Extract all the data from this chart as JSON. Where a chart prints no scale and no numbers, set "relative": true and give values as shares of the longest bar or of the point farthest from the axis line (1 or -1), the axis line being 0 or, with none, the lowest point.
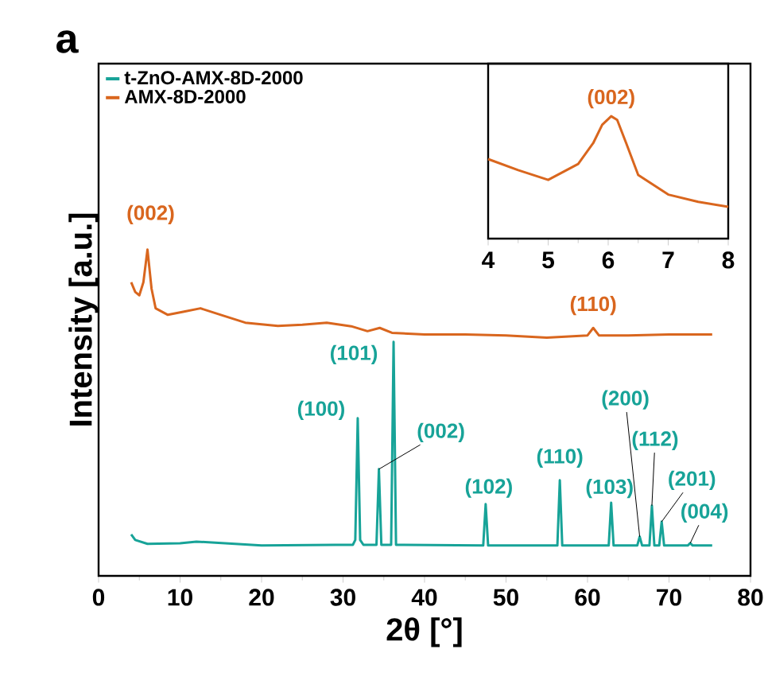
{
  "chart_data": [
    {
      "type": "line",
      "xlabel": "2θ [°]",
      "ylabel": "Intensity [a.u.]",
      "xlim": [
        0,
        80
      ],
      "xticks": [
        0,
        10,
        20,
        30,
        40,
        50,
        60,
        70,
        80
      ],
      "relative": true,
      "legend": "top left",
      "series": [
        {
          "name": "t-ZnO-AMX-8D-2000",
          "color": "#17a398",
          "x": [
            4,
            4.5,
            6,
            10,
            12,
            20,
            29,
            31.2,
            31.5,
            31.8,
            32.1,
            32.5,
            34.1,
            34.4,
            34.7,
            35.9,
            36.2,
            36.5,
            47.2,
            47.5,
            47.8,
            56.3,
            56.6,
            56.9,
            62.6,
            62.9,
            63.2,
            66.1,
            66.4,
            66.7,
            67.6,
            67.9,
            68.2,
            68.8,
            69.1,
            69.4,
            72.3,
            72.6,
            72.9,
            75.3
          ],
          "values": [
            0.127,
            0.11,
            0.098,
            0.1,
            0.105,
            0.093,
            0.095,
            0.095,
            0.11,
            0.483,
            0.11,
            0.095,
            0.095,
            0.327,
            0.095,
            0.095,
            0.717,
            0.095,
            0.093,
            0.22,
            0.093,
            0.093,
            0.293,
            0.093,
            0.093,
            0.224,
            0.093,
            0.093,
            0.12,
            0.093,
            0.093,
            0.215,
            0.093,
            0.093,
            0.166,
            0.093,
            0.093,
            0.1,
            0.093,
            0.093
          ]
        },
        {
          "name": "AMX-8D-2000",
          "color": "#d9661e",
          "x": [
            4,
            4.5,
            5,
            5.5,
            6,
            6.5,
            7,
            8.5,
            10.5,
            12.5,
            15,
            18,
            22,
            25,
            28,
            31,
            33,
            34.5,
            36,
            40,
            45,
            50,
            55,
            60,
            60.7,
            61.4,
            65,
            70,
            75.3
          ],
          "values": [
            0.9,
            0.87,
            0.86,
            0.9,
            1.0,
            0.88,
            0.82,
            0.8,
            0.81,
            0.82,
            0.8,
            0.776,
            0.766,
            0.77,
            0.776,
            0.765,
            0.75,
            0.76,
            0.745,
            0.74,
            0.74,
            0.737,
            0.73,
            0.737,
            0.76,
            0.737,
            0.737,
            0.74,
            0.74
          ]
        }
      ],
      "annotations": [
        "a",
        {
          "text": "(002)",
          "x": 6,
          "y": 1.0
        },
        {
          "text": "(110)",
          "x": 60.7,
          "y": 0.76
        },
        {
          "text": "(100)",
          "x": 31.8,
          "y": 0.483
        },
        {
          "text": "(101)",
          "x": 36.2,
          "y": 0.717
        },
        {
          "text": "(002)",
          "x": 34.4,
          "y": 0.327
        },
        {
          "text": "(102)",
          "x": 47.5,
          "y": 0.22
        },
        {
          "text": "(110)",
          "x": 56.6,
          "y": 0.293
        },
        {
          "text": "(103)",
          "x": 62.9,
          "y": 0.224
        },
        {
          "text": "(200)",
          "x": 66.4,
          "y": 0.12
        },
        {
          "text": "(112)",
          "x": 67.9,
          "y": 0.215
        },
        {
          "text": "(201)",
          "x": 69.1,
          "y": 0.166
        },
        {
          "text": "(004)",
          "x": 72.6,
          "y": 0.1
        }
      ]
    },
    {
      "type": "line",
      "xlim": [
        4,
        8
      ],
      "xticks": [
        4,
        5,
        6,
        7,
        8
      ],
      "relative": true,
      "series": [
        {
          "color": "#d9661e",
          "x": [
            4,
            4.5,
            5,
            5.5,
            5.75,
            5.9,
            6.05,
            6.15,
            6.3,
            6.5,
            7,
            7.5,
            8
          ],
          "values": [
            0.65,
            0.56,
            0.48,
            0.61,
            0.78,
            0.93,
            1.0,
            0.97,
            0.78,
            0.52,
            0.36,
            0.3,
            0.26
          ]
        }
      ],
      "annotations": [
        {
          "text": "(002)",
          "x": 6.05,
          "y": 1.0
        }
      ]
    }
  ]
}
